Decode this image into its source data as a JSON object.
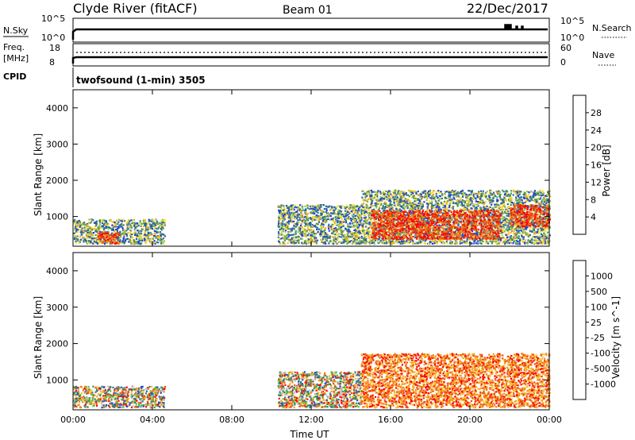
{
  "header": {
    "title": "Clyde River (fitACF)",
    "beam": "Beam 01",
    "date": "22/Dec/2017"
  },
  "strip_panels": {
    "nsky_label": "N.Sky",
    "nsky_ticks": [
      "10^5",
      "10^0"
    ],
    "nsearch_label": "N.Search",
    "nsearch_ticks": [
      "10^5",
      "10^0"
    ],
    "freq_label_line1": "Freq.",
    "freq_label_line2": "[MHz]",
    "freq_ticks": [
      "18",
      "8"
    ],
    "nave_label": "Nave",
    "nave_ticks": [
      "60",
      "0"
    ],
    "cpid_label": "CPID",
    "cpid_value": "twofsound (1-min) 3505"
  },
  "chart_data": [
    {
      "type": "heatmap",
      "name": "power-panel",
      "xlabel": "",
      "ylabel": "Slant Range [km]",
      "xlim": [
        0,
        24
      ],
      "ylim": [
        180,
        4500
      ],
      "yticks": [
        1000,
        2000,
        3000,
        4000
      ],
      "colorbar": {
        "label": "Power [dB]",
        "ticks": [
          "4",
          "8",
          "12",
          "16",
          "20",
          "24",
          "28"
        ],
        "colors": [
          "#1f3fd8",
          "#2a5db8",
          "#2e7d7a",
          "#5c9a55",
          "#9bc24e",
          "#f0e032",
          "#f7b21d",
          "#f07a1a",
          "#e8400f",
          "#ff0000"
        ]
      },
      "regions": [
        {
          "t0": 0.0,
          "t1": 4.6,
          "r0": 220,
          "r1": 900,
          "level": "mixed-low"
        },
        {
          "t0": 1.2,
          "t1": 2.3,
          "r0": 220,
          "r1": 550,
          "level": "high"
        },
        {
          "t0": 10.3,
          "t1": 14.5,
          "r0": 220,
          "r1": 1300,
          "level": "mixed-low"
        },
        {
          "t0": 14.5,
          "t1": 24.0,
          "r0": 220,
          "r1": 1700,
          "level": "mixed-low"
        },
        {
          "t0": 15.0,
          "t1": 21.5,
          "r0": 350,
          "r1": 1150,
          "level": "high"
        },
        {
          "t0": 22.0,
          "t1": 24.0,
          "r0": 700,
          "r1": 1300,
          "level": "high"
        }
      ]
    },
    {
      "type": "heatmap",
      "name": "velocity-panel",
      "xlabel": "Time UT",
      "ylabel": "Slant Range [km]",
      "xlim": [
        0,
        24
      ],
      "ylim": [
        180,
        4500
      ],
      "xticks": [
        "00:00",
        "04:00",
        "08:00",
        "12:00",
        "16:00",
        "20:00",
        "00:00"
      ],
      "yticks": [
        1000,
        2000,
        3000,
        4000
      ],
      "colorbar": {
        "label": "Velocity [m s^-1]",
        "ticks": [
          "1000",
          "500",
          "100",
          "25",
          "-25",
          "-100",
          "-500",
          "-1000"
        ],
        "colors": [
          "#2b4fc8",
          "#2f7b86",
          "#3a8f5a",
          "#57c23a",
          "#c0c0c0",
          "#f4c232",
          "#f7a11f",
          "#f07b1c",
          "#ea4a13",
          "#ff0000"
        ]
      },
      "regions": [
        {
          "t0": 0.0,
          "t1": 4.6,
          "r0": 220,
          "r1": 800,
          "level": "mixed"
        },
        {
          "t0": 10.3,
          "t1": 14.5,
          "r0": 220,
          "r1": 1200,
          "level": "mixed"
        },
        {
          "t0": 14.5,
          "t1": 24.0,
          "r0": 220,
          "r1": 1700,
          "level": "negative"
        }
      ]
    }
  ]
}
